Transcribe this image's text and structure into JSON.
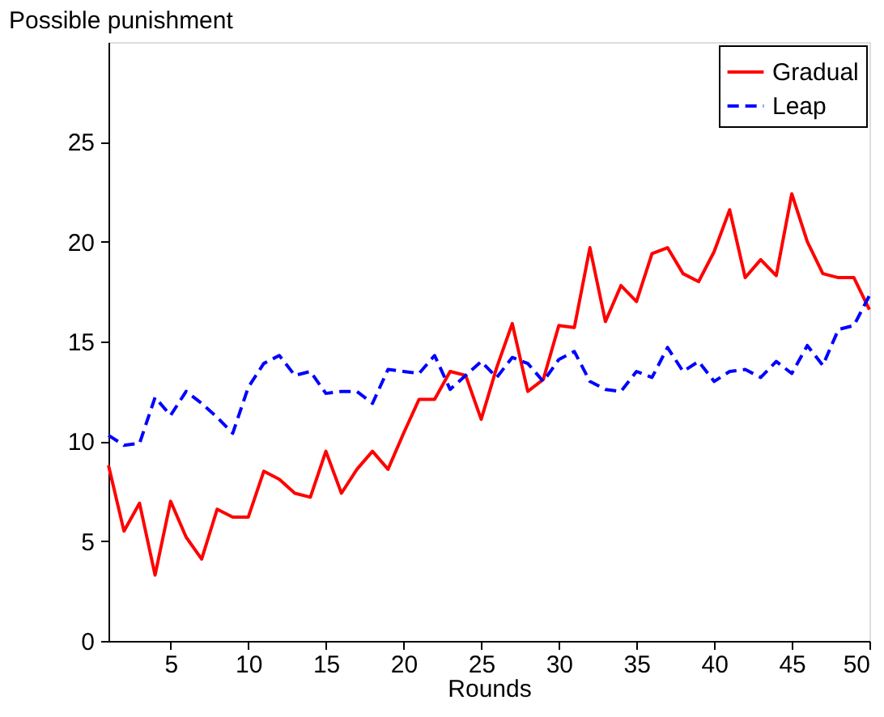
{
  "chart_data": {
    "type": "line",
    "ylabel": "Possible punishment",
    "xlabel": "Rounds",
    "x": [
      1,
      2,
      3,
      4,
      5,
      6,
      7,
      8,
      9,
      10,
      11,
      12,
      13,
      14,
      15,
      16,
      17,
      18,
      19,
      20,
      21,
      22,
      23,
      24,
      25,
      26,
      27,
      28,
      29,
      30,
      31,
      32,
      33,
      34,
      35,
      36,
      37,
      38,
      39,
      40,
      41,
      42,
      43,
      44,
      45,
      46,
      47,
      48,
      49,
      50
    ],
    "xlim": [
      1,
      50
    ],
    "xticks": [
      5,
      10,
      15,
      20,
      25,
      30,
      35,
      40,
      45,
      50
    ],
    "ylim": [
      0,
      30
    ],
    "yticks": [
      0,
      5,
      10,
      15,
      20,
      25
    ],
    "legend": "top right",
    "grid": false,
    "marker": "none",
    "series": [
      {
        "name": "Gradual",
        "color": "#ff0000",
        "line_style": "solid",
        "values": [
          8.8,
          5.5,
          6.9,
          3.3,
          7.0,
          5.2,
          4.1,
          6.6,
          6.2,
          6.2,
          8.5,
          8.1,
          7.4,
          7.2,
          9.5,
          7.4,
          8.6,
          9.5,
          8.6,
          10.4,
          12.1,
          12.1,
          13.5,
          13.3,
          11.1,
          13.7,
          15.9,
          12.5,
          13.1,
          15.8,
          15.7,
          19.7,
          16.0,
          17.8,
          17.0,
          19.4,
          19.7,
          18.4,
          18.0,
          19.5,
          21.6,
          18.2,
          19.1,
          18.3,
          22.4,
          20.0,
          18.4,
          18.2,
          18.2,
          16.6
        ]
      },
      {
        "name": "Leap",
        "color": "#0000ff",
        "line_style": "dashed",
        "values": [
          10.3,
          9.8,
          9.9,
          12.2,
          11.3,
          12.5,
          11.9,
          11.2,
          10.4,
          12.7,
          13.9,
          14.3,
          13.3,
          13.5,
          12.4,
          12.5,
          12.5,
          11.9,
          13.6,
          13.5,
          13.4,
          14.3,
          12.6,
          13.3,
          14.0,
          13.2,
          14.2,
          13.9,
          13.0,
          14.1,
          14.5,
          13.0,
          12.6,
          12.5,
          13.5,
          13.2,
          14.7,
          13.5,
          14.0,
          13.0,
          13.5,
          13.6,
          13.2,
          14.0,
          13.4,
          14.8,
          13.8,
          15.6,
          15.8,
          17.3
        ]
      }
    ]
  }
}
